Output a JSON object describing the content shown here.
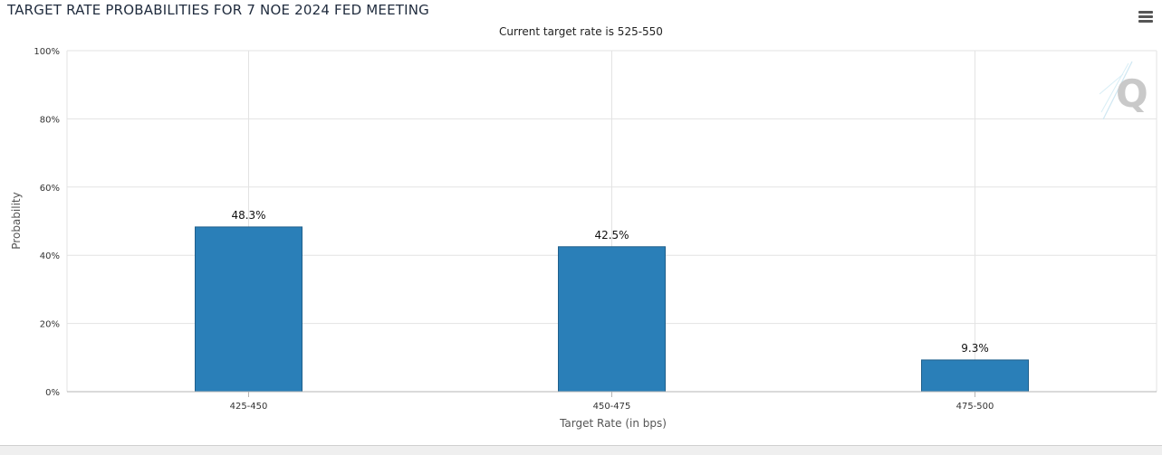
{
  "chart_data": {
    "type": "bar",
    "title": "TARGET RATE PROBABILITIES FOR 7 NOE 2024 FED MEETING",
    "subtitle": "Current target rate is 525-550",
    "xlabel": "Target Rate (in bps)",
    "ylabel": "Probability",
    "categories": [
      "425-450",
      "450-475",
      "475-500"
    ],
    "values": [
      48.3,
      42.5,
      9.3
    ],
    "data_labels": [
      "48.3%",
      "42.5%",
      "9.3%"
    ],
    "ylim": [
      0,
      100
    ],
    "yticks": [
      "0%",
      "20%",
      "40%",
      "60%",
      "80%",
      "100%"
    ],
    "ytick_values": [
      0,
      20,
      40,
      60,
      80,
      100
    ],
    "grid": true,
    "bar_color": "#2a7fb8",
    "bar_border_color": "#1f5f8b",
    "watermark_icon": "q-logo-icon"
  },
  "toolbar": {
    "menu_icon": "hamburger-menu-icon"
  }
}
